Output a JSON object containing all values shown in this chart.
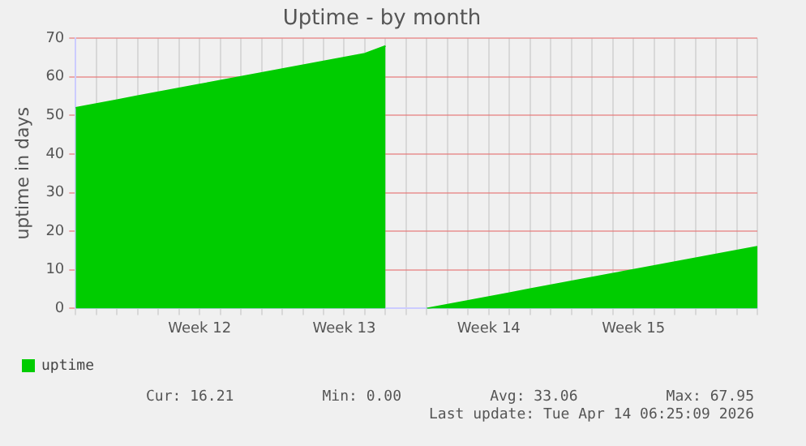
{
  "chart_data": {
    "type": "area",
    "title": "Uptime - by month",
    "ylabel": "uptime in days",
    "categories": [
      null,
      null,
      null,
      null,
      null,
      null,
      "Week 12",
      null,
      null,
      null,
      null,
      null,
      null,
      "Week 13",
      null,
      null,
      null,
      null,
      null,
      null,
      "Week 14",
      null,
      null,
      null,
      null,
      null,
      null,
      "Week 15",
      null,
      null,
      null,
      null,
      null,
      null
    ],
    "series": [
      {
        "name": "uptime",
        "color": "#00cc00",
        "values": [
          52,
          53,
          54,
          55,
          56,
          57,
          58,
          59,
          60,
          61,
          62,
          63,
          64,
          65,
          66,
          68,
          null,
          0,
          1,
          2,
          3,
          4,
          5,
          6,
          7,
          8,
          9,
          10,
          11,
          12,
          13,
          14,
          15,
          16
        ]
      }
    ],
    "ylim": [
      0,
      70
    ],
    "yticks": [
      0,
      10,
      20,
      30,
      40,
      50,
      60,
      70
    ],
    "grid": true,
    "legend": "bottom left",
    "annotations": [
      "Cur: 16.21",
      "Min: 0.00",
      "Avg: 33.06",
      "Max: 67.95",
      "Last update: Tue Apr 14 06:25:09 2026"
    ]
  }
}
